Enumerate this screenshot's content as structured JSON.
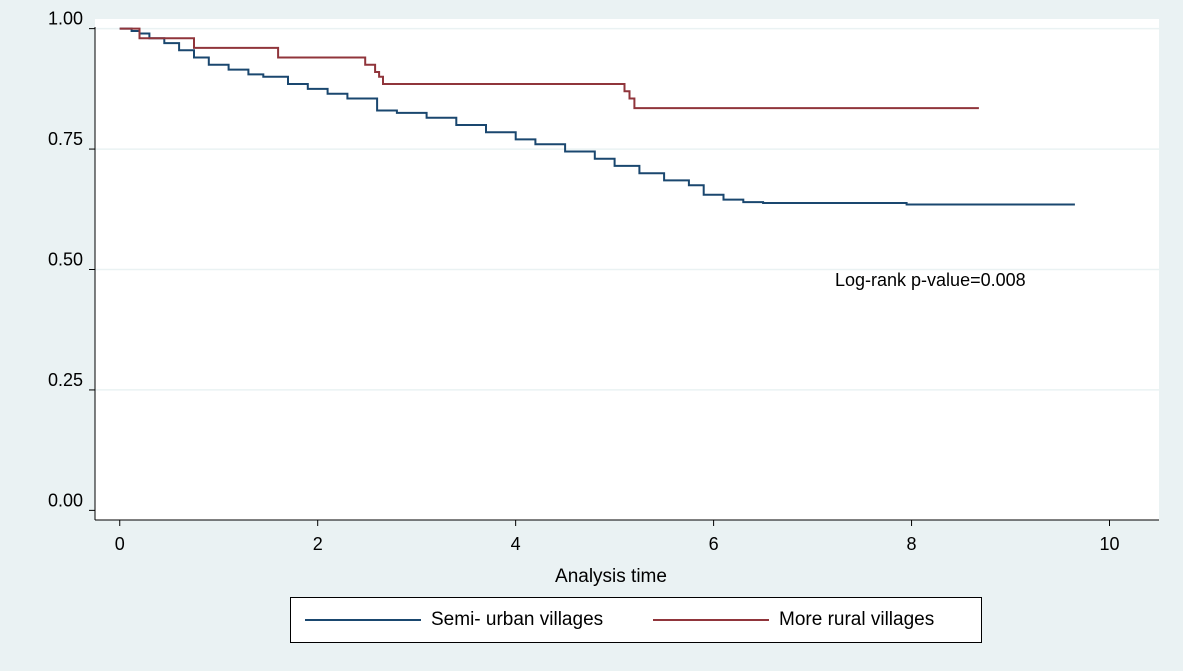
{
  "chart_data": {
    "type": "line",
    "title": "",
    "xlabel": "Analysis time",
    "ylabel": "",
    "xlim": [
      -0.25,
      10.5
    ],
    "ylim": [
      -0.02,
      1.02
    ],
    "x_ticks": [
      0,
      2,
      4,
      6,
      8,
      10
    ],
    "y_ticks": [
      0.0,
      0.25,
      0.5,
      0.75,
      1.0
    ],
    "x_tick_labels": [
      "0",
      "2",
      "4",
      "6",
      "8",
      "10"
    ],
    "y_tick_labels": [
      "0.00",
      "0.25",
      "0.50",
      "0.75",
      "1.00"
    ],
    "grid": "horizontal",
    "legend_position": "bottom",
    "annotation": "Log-rank p-value=0.008",
    "series": [
      {
        "name": "Semi- urban villages",
        "color": "#1a476f",
        "x": [
          0,
          0.12,
          0.2,
          0.3,
          0.45,
          0.6,
          0.75,
          0.9,
          1.1,
          1.3,
          1.45,
          1.7,
          1.9,
          2.1,
          2.3,
          2.6,
          2.8,
          3.1,
          3.4,
          3.7,
          4.0,
          4.2,
          4.5,
          4.8,
          5.0,
          5.25,
          5.5,
          5.75,
          5.9,
          6.1,
          6.3,
          6.5,
          7.0,
          7.5,
          7.95,
          8.5,
          9.0,
          9.65
        ],
        "y": [
          1.0,
          0.995,
          0.99,
          0.98,
          0.97,
          0.955,
          0.94,
          0.925,
          0.915,
          0.905,
          0.9,
          0.885,
          0.875,
          0.865,
          0.855,
          0.83,
          0.825,
          0.815,
          0.8,
          0.785,
          0.77,
          0.76,
          0.745,
          0.73,
          0.715,
          0.7,
          0.685,
          0.675,
          0.655,
          0.645,
          0.64,
          0.638,
          0.638,
          0.638,
          0.635,
          0.635,
          0.635,
          0.635
        ]
      },
      {
        "name": "More rural villages",
        "color": "#90353b",
        "x": [
          0,
          0.2,
          0.75,
          1.6,
          2.48,
          2.58,
          2.62,
          2.66,
          5.1,
          5.15,
          5.2,
          8.68
        ],
        "y": [
          1.0,
          0.98,
          0.96,
          0.94,
          0.925,
          0.91,
          0.9,
          0.885,
          0.87,
          0.855,
          0.835,
          0.835
        ]
      }
    ]
  }
}
